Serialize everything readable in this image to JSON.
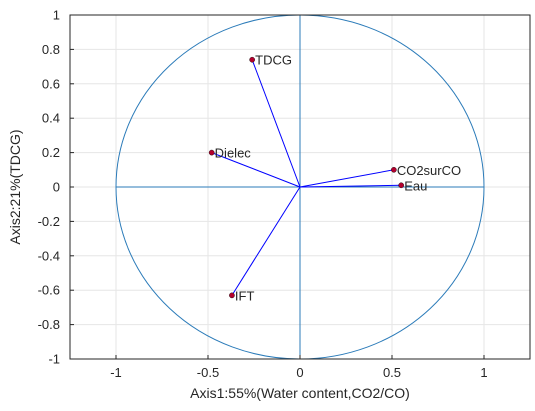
{
  "chart_data": {
    "type": "scatter",
    "subtype": "pca-correlation-circle",
    "xlabel": "Axis1:55%(Water content,CO2/CO)",
    "ylabel": "Axis2:21%(TDCG)",
    "xlim": [
      -1.25,
      1.25
    ],
    "ylim": [
      -1,
      1
    ],
    "x_ticks": [
      -1,
      -0.5,
      0,
      0.5,
      1
    ],
    "x_tick_labels": [
      "-1",
      "-0.5",
      "0",
      "0.5",
      "1"
    ],
    "y_ticks": [
      -1,
      -0.8,
      -0.6,
      -0.4,
      -0.2,
      0,
      0.2,
      0.4,
      0.6,
      0.8,
      1
    ],
    "y_tick_labels": [
      "-1",
      "-0.8",
      "-0.6",
      "-0.4",
      "-0.2",
      "0",
      "0.2",
      "0.4",
      "0.6",
      "0.8",
      "1"
    ],
    "grid": true,
    "unit_circle": true,
    "points": [
      {
        "label": "TDCG",
        "x": -0.26,
        "y": 0.74
      },
      {
        "label": "Dielec",
        "x": -0.48,
        "y": 0.2
      },
      {
        "label": "CO2surCO",
        "x": 0.51,
        "y": 0.1
      },
      {
        "label": "Eau",
        "x": 0.55,
        "y": 0.01
      },
      {
        "label": "IFT",
        "x": -0.37,
        "y": -0.63
      }
    ],
    "colors": {
      "circle": "#2b7bb9",
      "axes_lines": "#2b7bb9",
      "vectors": "#0000ff",
      "point_marker": "#b3002d",
      "grid": "#e6e6e6",
      "frame": "#262626"
    }
  }
}
